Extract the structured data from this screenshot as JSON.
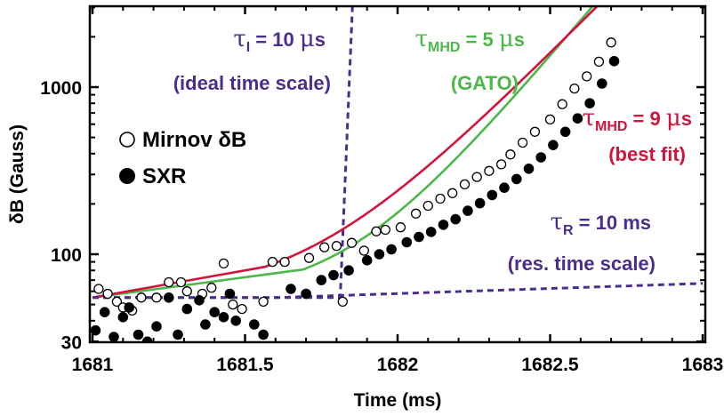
{
  "chart_data": {
    "type": "scatter",
    "xlabel": "Time (ms)",
    "ylabel": "δB (Gauss)",
    "xlim": [
      1681,
      1683
    ],
    "ylim": [
      30,
      3000
    ],
    "yscale": "log",
    "grid": false,
    "legend_position": "left",
    "x_ticks": [
      {
        "value": 1681,
        "label": "1681"
      },
      {
        "value": 1681.5,
        "label": "1681.5"
      },
      {
        "value": 1682,
        "label": "1682"
      },
      {
        "value": 1682.5,
        "label": "1682.5"
      },
      {
        "value": 1683,
        "label": "1683"
      }
    ],
    "y_ticks": [
      {
        "value": 30,
        "label": "30"
      },
      {
        "value": 100,
        "label": "100"
      },
      {
        "value": 1000,
        "label": "1000"
      }
    ],
    "series": [
      {
        "name": "Mirnov δB",
        "marker": "open-circle",
        "points": [
          [
            1681.02,
            62
          ],
          [
            1681.05,
            58
          ],
          [
            1681.08,
            52
          ],
          [
            1681.1,
            48
          ],
          [
            1681.13,
            46
          ],
          [
            1681.16,
            55
          ],
          [
            1681.21,
            55
          ],
          [
            1681.25,
            68
          ],
          [
            1681.29,
            68
          ],
          [
            1681.31,
            60
          ],
          [
            1681.36,
            58
          ],
          [
            1681.39,
            63
          ],
          [
            1681.43,
            88
          ],
          [
            1681.46,
            50
          ],
          [
            1681.49,
            47
          ],
          [
            1681.56,
            52
          ],
          [
            1681.59,
            90
          ],
          [
            1681.63,
            90
          ],
          [
            1681.71,
            95
          ],
          [
            1681.76,
            110
          ],
          [
            1681.8,
            112
          ],
          [
            1681.82,
            52
          ],
          [
            1681.85,
            117
          ],
          [
            1681.89,
            105
          ],
          [
            1681.93,
            137
          ],
          [
            1681.96,
            140
          ],
          [
            1682.01,
            145
          ],
          [
            1682.06,
            175
          ],
          [
            1682.1,
            195
          ],
          [
            1682.14,
            215
          ],
          [
            1682.18,
            232
          ],
          [
            1682.22,
            262
          ],
          [
            1682.26,
            290
          ],
          [
            1682.3,
            315
          ],
          [
            1682.34,
            345
          ],
          [
            1682.37,
            395
          ],
          [
            1682.41,
            465
          ],
          [
            1682.45,
            540
          ],
          [
            1682.5,
            640
          ],
          [
            1682.54,
            790
          ],
          [
            1682.58,
            980
          ],
          [
            1682.62,
            1160
          ],
          [
            1682.66,
            1420
          ],
          [
            1682.7,
            1850
          ]
        ]
      },
      {
        "name": "SXR",
        "marker": "filled-circle",
        "points": [
          [
            1681.01,
            35
          ],
          [
            1681.04,
            45
          ],
          [
            1681.07,
            32
          ],
          [
            1681.1,
            42
          ],
          [
            1681.12,
            48
          ],
          [
            1681.15,
            33
          ],
          [
            1681.18,
            30
          ],
          [
            1681.21,
            37
          ],
          [
            1681.25,
            55
          ],
          [
            1681.28,
            33
          ],
          [
            1681.31,
            47
          ],
          [
            1681.35,
            53
          ],
          [
            1681.37,
            38
          ],
          [
            1681.4,
            45
          ],
          [
            1681.43,
            42
          ],
          [
            1681.45,
            58
          ],
          [
            1681.47,
            40
          ],
          [
            1681.53,
            38
          ],
          [
            1681.56,
            33
          ],
          [
            1681.65,
            62
          ],
          [
            1681.7,
            58
          ],
          [
            1681.75,
            70
          ],
          [
            1681.79,
            75
          ],
          [
            1681.84,
            80
          ],
          [
            1681.9,
            92
          ],
          [
            1681.94,
            100
          ],
          [
            1681.98,
            107
          ],
          [
            1682.03,
            118
          ],
          [
            1682.07,
            127
          ],
          [
            1682.11,
            136
          ],
          [
            1682.15,
            150
          ],
          [
            1682.19,
            162
          ],
          [
            1682.23,
            182
          ],
          [
            1682.27,
            202
          ],
          [
            1682.31,
            226
          ],
          [
            1682.35,
            250
          ],
          [
            1682.39,
            282
          ],
          [
            1682.43,
            325
          ],
          [
            1682.47,
            380
          ],
          [
            1682.51,
            450
          ],
          [
            1682.55,
            540
          ],
          [
            1682.59,
            650
          ],
          [
            1682.63,
            800
          ],
          [
            1682.67,
            1050
          ],
          [
            1682.71,
            1430
          ]
        ]
      }
    ],
    "curves": [
      {
        "id": "ideal",
        "color": "#4B2D8C",
        "style": "dashed",
        "baseline": 55,
        "onset": 1681.812,
        "tau_ms": 0.01
      },
      {
        "id": "gato",
        "color": "#4CB848",
        "style": "solid",
        "baseline": 55,
        "onset": 1681.84,
        "tau_ms": 0.2
      },
      {
        "id": "bestfit",
        "color": "#D2143C",
        "style": "solid",
        "baseline": 55,
        "onset": 1681.715,
        "tau_ms": 0.235
      },
      {
        "id": "resistive",
        "color": "#4B2D8C",
        "style": "dashed",
        "baseline": 55,
        "slope_per_ms": 0.14
      }
    ],
    "annotations": {
      "ideal": {
        "symbol": "τ",
        "sub": "I",
        "value": " = 10 ",
        "unit_symbol": "μ",
        "unit": "s",
        "note": "(ideal time scale)",
        "color": "#4B2D8C"
      },
      "gato": {
        "symbol": "τ",
        "sub": "MHD",
        "value": " = 5 ",
        "unit_symbol": "μ",
        "unit": "s",
        "note": "(GATO)",
        "color": "#4CB848"
      },
      "bestfit": {
        "symbol": "τ",
        "sub": "MHD",
        "value": " = 9 ",
        "unit_symbol": "μ",
        "unit": "s",
        "note": "(best fit)",
        "color": "#D2143C"
      },
      "resistive": {
        "symbol": "τ",
        "sub": "R",
        "value": " = 10 ms",
        "note": "(res. time scale)",
        "color": "#4B2D8C"
      }
    }
  }
}
